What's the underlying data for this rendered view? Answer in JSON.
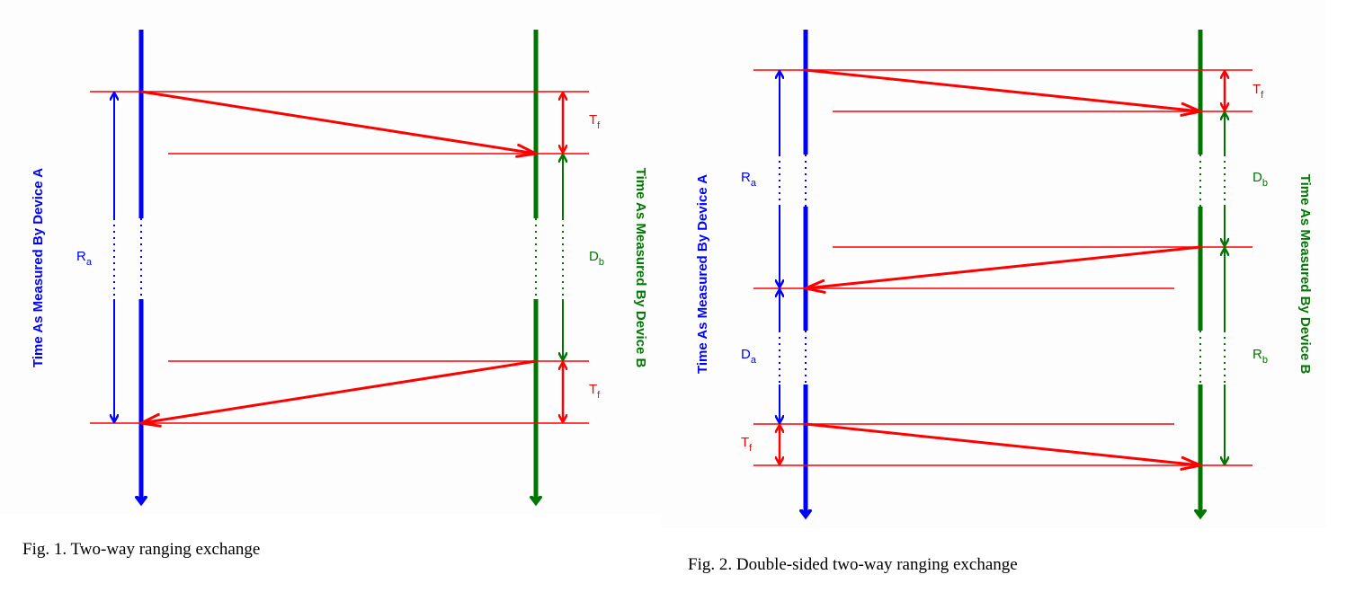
{
  "fig1": {
    "caption": "Fig. 1.  Two-way ranging exchange",
    "axis_a_label": "Time As Measured By Device A",
    "axis_b_label": "Time As Measured By Device B",
    "label_ra": {
      "main": "R",
      "sub": "a"
    },
    "label_db": {
      "main": "D",
      "sub": "b"
    },
    "label_tf_top": {
      "main": "T",
      "sub": "f"
    },
    "label_tf_bottom": {
      "main": "T",
      "sub": "f"
    }
  },
  "fig2": {
    "caption": "Fig. 2.  Double-sided two-way ranging exchange",
    "axis_a_label": "Time As Measured By Device A",
    "axis_b_label": "Time As Measured By Device B",
    "label_tf_top": {
      "main": "T",
      "sub": "f"
    },
    "label_ra": {
      "main": "R",
      "sub": "a"
    },
    "label_db": {
      "main": "D",
      "sub": "b"
    },
    "label_da": {
      "main": "D",
      "sub": "a"
    },
    "label_rb": {
      "main": "R",
      "sub": "b"
    },
    "label_tf_bottom": {
      "main": "T",
      "sub": "f"
    }
  },
  "colors": {
    "device_a": "#0000ff",
    "device_b": "#007700",
    "message": "#ff0000"
  }
}
